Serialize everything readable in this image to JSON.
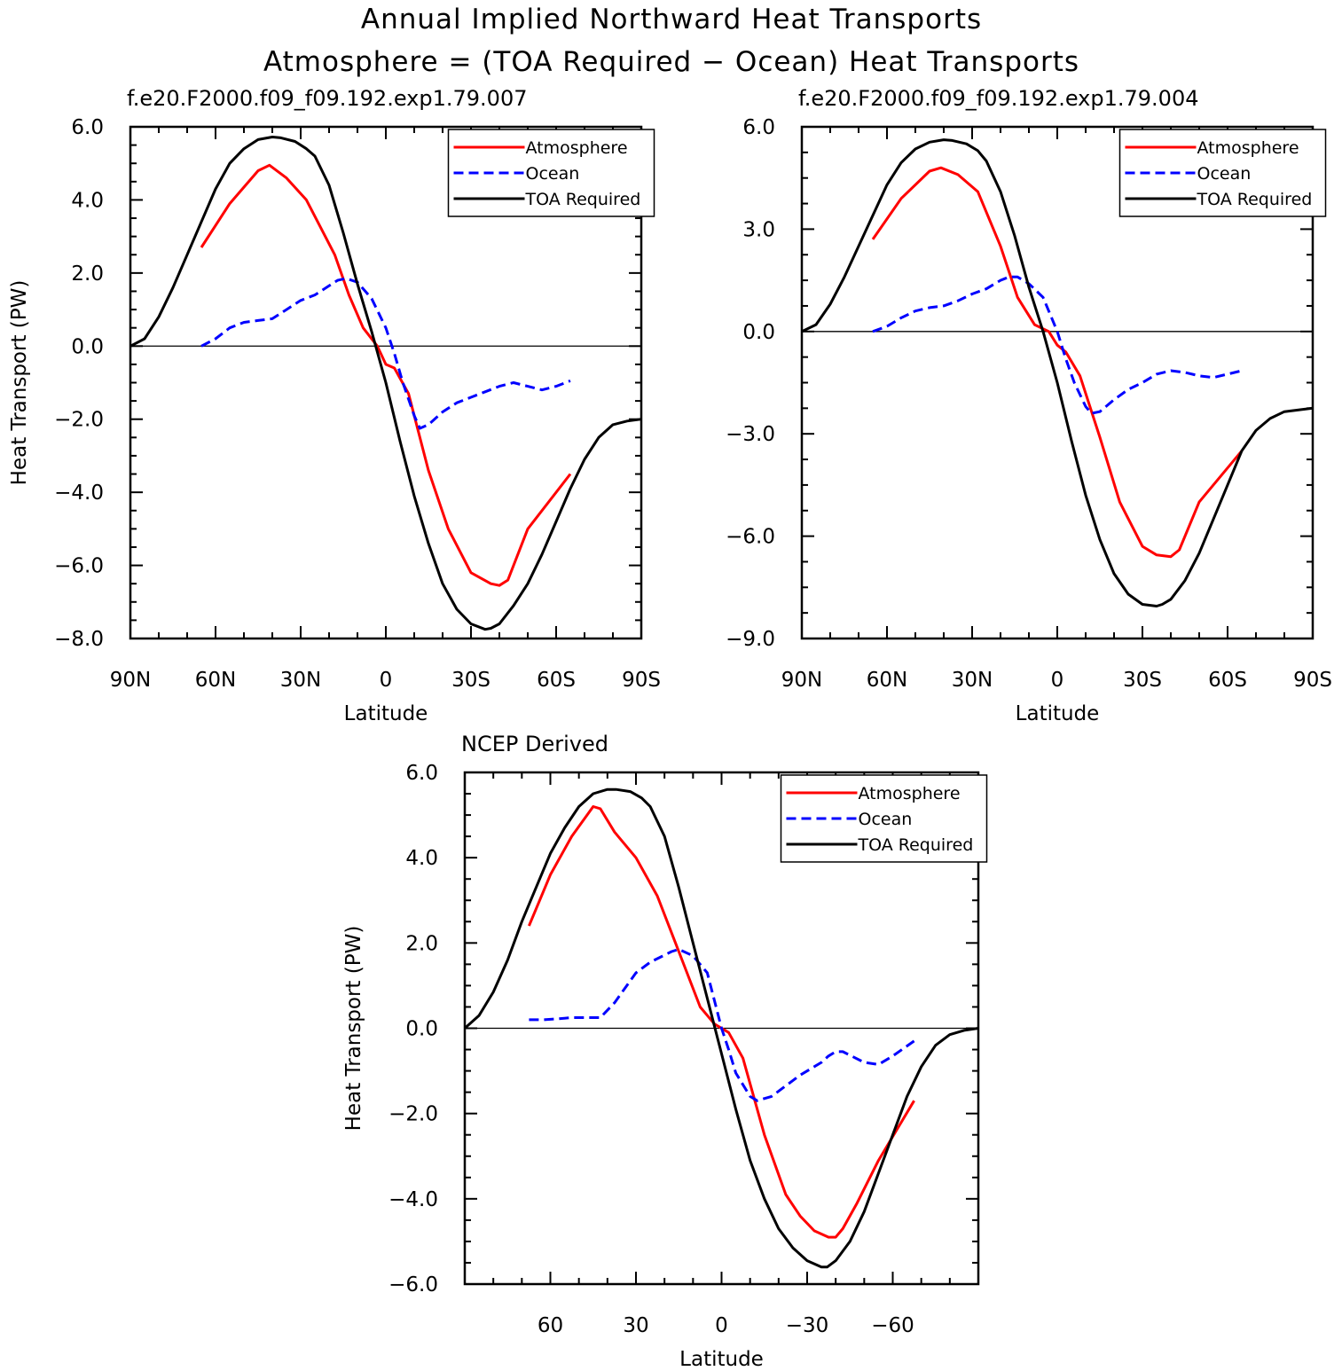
{
  "figure": {
    "title_line1": "Annual Implied Northward Heat Transports",
    "title_line2": "Atmosphere = (TOA Required − Ocean) Heat Transports"
  },
  "colors": {
    "atmosphere": "#ff0000",
    "ocean": "#0000ff",
    "toa": "#000000",
    "axes": "#000000"
  },
  "chart_data": [
    {
      "type": "line",
      "subtitle": "f.e20.F2000.f09_f09.192.exp1.79.007",
      "xlabel": "Latitude",
      "ylabel": "Heat Transport (PW)",
      "xlim": [
        90,
        -90
      ],
      "ylim": [
        -8.0,
        6.0
      ],
      "x_ticks": [
        90,
        60,
        30,
        0,
        -30,
        -60,
        -90
      ],
      "x_tick_labels": [
        "90N",
        "60N",
        "30N",
        "0",
        "30S",
        "60S",
        "90S"
      ],
      "y_ticks": [
        6,
        4,
        2,
        0,
        -2,
        -4,
        -6,
        -8
      ],
      "y_tick_labels": [
        "6.0",
        "4.0",
        "2.0",
        "0.0",
        "−2.0",
        "−4.0",
        "−6.0",
        "−8.0"
      ],
      "zero_line": true,
      "legend": {
        "position": "top-right"
      },
      "series": [
        {
          "name": "Atmosphere",
          "style": "solid",
          "color_key": "atmosphere",
          "x": [
            65,
            55,
            45,
            41,
            35,
            28,
            18,
            13,
            8,
            3,
            0,
            -3,
            -8,
            -15,
            -22,
            -30,
            -37,
            -40,
            -43,
            -50,
            -65
          ],
          "y": [
            2.7,
            3.9,
            4.8,
            4.95,
            4.6,
            4.0,
            2.5,
            1.4,
            0.5,
            0.0,
            -0.5,
            -0.6,
            -1.3,
            -3.4,
            -5.0,
            -6.2,
            -6.5,
            -6.55,
            -6.4,
            -5.0,
            -3.5
          ]
        },
        {
          "name": "Ocean",
          "style": "dashed",
          "color_key": "ocean",
          "x": [
            65,
            60,
            55,
            50,
            45,
            40,
            35,
            30,
            25,
            20,
            17,
            14,
            10,
            5,
            0,
            -3,
            -6,
            -10,
            -12,
            -15,
            -20,
            -25,
            -30,
            -35,
            -40,
            -45,
            -50,
            -55,
            -60,
            -65
          ],
          "y": [
            0.0,
            0.2,
            0.5,
            0.65,
            0.7,
            0.75,
            1.0,
            1.25,
            1.4,
            1.65,
            1.8,
            1.85,
            1.75,
            1.3,
            0.5,
            -0.2,
            -1.0,
            -1.9,
            -2.25,
            -2.15,
            -1.8,
            -1.55,
            -1.4,
            -1.25,
            -1.1,
            -1.0,
            -1.1,
            -1.2,
            -1.1,
            -0.95
          ]
        },
        {
          "name": "TOA Required",
          "style": "solid",
          "color_key": "toa",
          "x": [
            90,
            85,
            80,
            75,
            70,
            65,
            60,
            55,
            50,
            45,
            40,
            37,
            32,
            28,
            25,
            20,
            15,
            10,
            5,
            0,
            -5,
            -10,
            -15,
            -20,
            -25,
            -30,
            -35,
            -37,
            -40,
            -45,
            -50,
            -55,
            -60,
            -65,
            -70,
            -75,
            -80,
            -85,
            -90
          ],
          "y": [
            0.0,
            0.2,
            0.8,
            1.6,
            2.5,
            3.4,
            4.3,
            5.0,
            5.4,
            5.65,
            5.72,
            5.7,
            5.6,
            5.4,
            5.2,
            4.4,
            3.1,
            1.7,
            0.4,
            -1.0,
            -2.6,
            -4.1,
            -5.4,
            -6.5,
            -7.2,
            -7.6,
            -7.75,
            -7.72,
            -7.6,
            -7.1,
            -6.5,
            -5.7,
            -4.8,
            -3.9,
            -3.1,
            -2.5,
            -2.15,
            -2.05,
            -2.0
          ]
        }
      ]
    },
    {
      "type": "line",
      "subtitle": "f.e20.F2000.f09_f09.192.exp1.79.004",
      "xlabel": "Latitude",
      "ylabel": "",
      "xlim": [
        90,
        -90
      ],
      "ylim": [
        -9.0,
        6.0
      ],
      "x_ticks": [
        90,
        60,
        30,
        0,
        -30,
        -60,
        -90
      ],
      "x_tick_labels": [
        "90N",
        "60N",
        "30N",
        "0",
        "30S",
        "60S",
        "90S"
      ],
      "y_ticks": [
        6,
        3,
        0,
        -3,
        -6,
        -9
      ],
      "y_tick_labels": [
        "6.0",
        "3.0",
        "0.0",
        "−3.0",
        "−6.0",
        "−9.0"
      ],
      "zero_line": true,
      "legend": {
        "position": "top-right"
      },
      "series": [
        {
          "name": "Atmosphere",
          "style": "solid",
          "color_key": "atmosphere",
          "x": [
            65,
            55,
            45,
            41,
            35,
            28,
            20,
            14,
            8,
            3,
            0,
            -3,
            -8,
            -15,
            -22,
            -30,
            -35,
            -40,
            -43,
            -50,
            -65
          ],
          "y": [
            2.7,
            3.9,
            4.7,
            4.8,
            4.6,
            4.1,
            2.5,
            1.0,
            0.2,
            0.0,
            -0.4,
            -0.6,
            -1.3,
            -3.1,
            -5.0,
            -6.3,
            -6.55,
            -6.6,
            -6.4,
            -5.0,
            -3.5
          ]
        },
        {
          "name": "Ocean",
          "style": "dashed",
          "color_key": "ocean",
          "x": [
            65,
            60,
            55,
            50,
            45,
            40,
            35,
            30,
            25,
            20,
            17,
            14,
            10,
            5,
            0,
            -3,
            -6,
            -10,
            -12,
            -15,
            -20,
            -25,
            -30,
            -35,
            -40,
            -45,
            -50,
            -55,
            -60,
            -65
          ],
          "y": [
            0.0,
            0.15,
            0.4,
            0.6,
            0.7,
            0.75,
            0.9,
            1.1,
            1.25,
            1.5,
            1.6,
            1.6,
            1.4,
            1.0,
            0.0,
            -0.8,
            -1.5,
            -2.2,
            -2.4,
            -2.35,
            -2.0,
            -1.7,
            -1.5,
            -1.25,
            -1.15,
            -1.2,
            -1.3,
            -1.35,
            -1.25,
            -1.15
          ]
        },
        {
          "name": "TOA Required",
          "style": "solid",
          "color_key": "toa",
          "x": [
            90,
            85,
            80,
            75,
            70,
            65,
            60,
            55,
            50,
            45,
            40,
            37,
            32,
            28,
            25,
            20,
            15,
            10,
            5,
            0,
            -5,
            -10,
            -15,
            -20,
            -25,
            -30,
            -35,
            -37,
            -40,
            -45,
            -50,
            -55,
            -60,
            -65,
            -70,
            -75,
            -80,
            -85,
            -90
          ],
          "y": [
            0.0,
            0.2,
            0.8,
            1.6,
            2.5,
            3.4,
            4.3,
            4.95,
            5.35,
            5.55,
            5.62,
            5.6,
            5.5,
            5.3,
            5.0,
            4.1,
            2.8,
            1.3,
            0.0,
            -1.5,
            -3.2,
            -4.8,
            -6.1,
            -7.1,
            -7.7,
            -8.0,
            -8.05,
            -8.0,
            -7.85,
            -7.3,
            -6.5,
            -5.5,
            -4.5,
            -3.5,
            -2.9,
            -2.55,
            -2.35,
            -2.3,
            -2.25
          ]
        }
      ]
    },
    {
      "type": "line",
      "subtitle": "NCEP Derived",
      "xlabel": "Latitude",
      "ylabel": "Heat Transport (PW)",
      "xlim": [
        90,
        -90
      ],
      "ylim": [
        -6.0,
        6.0
      ],
      "x_ticks": [
        60,
        30,
        0,
        -30,
        -60
      ],
      "x_tick_labels": [
        "60",
        "30",
        "0",
        "−30",
        "−60"
      ],
      "y_ticks": [
        6,
        4,
        2,
        0,
        -2,
        -4,
        -6
      ],
      "y_tick_labels": [
        "6.0",
        "4.0",
        "2.0",
        "0.0",
        "−2.0",
        "−4.0",
        "−6.0"
      ],
      "zero_line": true,
      "legend": {
        "position": "top-right"
      },
      "series": [
        {
          "name": "Atmosphere",
          "style": "solid",
          "color_key": "atmosphere",
          "x": [
            67.5,
            60,
            52.5,
            45,
            42.5,
            37.5,
            30,
            22.5,
            15,
            7.5,
            2.5,
            0,
            -2.5,
            -7.5,
            -15,
            -22.5,
            -27.5,
            -32.5,
            -37.5,
            -40,
            -42.5,
            -47.5,
            -55,
            -67.5
          ],
          "y": [
            2.4,
            3.6,
            4.5,
            5.2,
            5.15,
            4.6,
            4.0,
            3.1,
            1.8,
            0.5,
            0.1,
            0.0,
            -0.1,
            -0.7,
            -2.5,
            -3.9,
            -4.4,
            -4.75,
            -4.9,
            -4.9,
            -4.7,
            -4.1,
            -3.1,
            -1.7
          ]
        },
        {
          "name": "Ocean",
          "style": "dashed",
          "color_key": "ocean",
          "x": [
            67.5,
            62.5,
            57.5,
            52.5,
            45,
            42.5,
            37.5,
            30,
            25,
            17.5,
            15,
            10,
            5,
            0,
            -2.5,
            -5,
            -10,
            -12.5,
            -17.5,
            -22.5,
            -27.5,
            -35,
            -37.5,
            -40,
            -42.5,
            -50,
            -55,
            -60,
            -67.5
          ],
          "y": [
            0.2,
            0.2,
            0.22,
            0.25,
            0.25,
            0.25,
            0.6,
            1.3,
            1.55,
            1.8,
            1.85,
            1.7,
            1.3,
            0.0,
            -0.5,
            -1.05,
            -1.6,
            -1.7,
            -1.6,
            -1.35,
            -1.1,
            -0.8,
            -0.65,
            -0.55,
            -0.55,
            -0.8,
            -0.85,
            -0.65,
            -0.3
          ]
        },
        {
          "name": "TOA Required",
          "style": "solid",
          "color_key": "toa",
          "x": [
            90,
            85,
            80,
            75,
            70,
            65,
            60,
            55,
            50,
            45,
            40,
            37,
            32,
            28,
            25,
            20,
            15,
            10,
            5,
            0,
            -5,
            -10,
            -15,
            -20,
            -25,
            -30,
            -35,
            -37,
            -40,
            -45,
            -50,
            -55,
            -60,
            -65,
            -70,
            -75,
            -80,
            -85,
            -90
          ],
          "y": [
            0.0,
            0.3,
            0.85,
            1.6,
            2.5,
            3.3,
            4.1,
            4.7,
            5.2,
            5.5,
            5.6,
            5.6,
            5.55,
            5.4,
            5.2,
            4.5,
            3.3,
            2.0,
            0.7,
            -0.6,
            -1.9,
            -3.1,
            -4.0,
            -4.7,
            -5.15,
            -5.45,
            -5.6,
            -5.6,
            -5.45,
            -5.0,
            -4.3,
            -3.4,
            -2.5,
            -1.6,
            -0.9,
            -0.4,
            -0.15,
            -0.05,
            0.0
          ]
        }
      ]
    }
  ]
}
